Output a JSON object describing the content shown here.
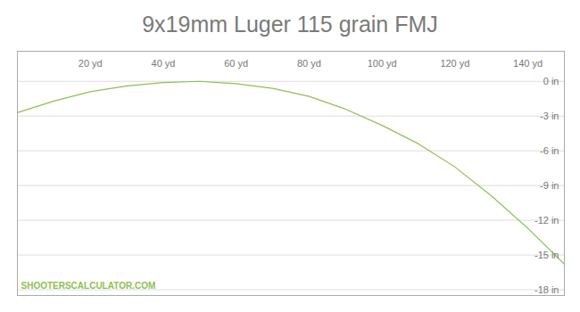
{
  "chart_data": {
    "type": "line",
    "title": "9x19mm Luger 115 grain FMJ",
    "annotation": "SHOOTERSCALCULATOR.COM",
    "x": [
      0,
      10,
      20,
      30,
      40,
      50,
      60,
      70,
      80,
      90,
      100,
      110,
      120,
      130,
      140,
      150
    ],
    "values": [
      -2.7,
      -1.7,
      -0.9,
      -0.4,
      -0.1,
      0.0,
      -0.2,
      -0.6,
      -1.3,
      -2.4,
      -3.8,
      -5.4,
      -7.4,
      -9.9,
      -12.7,
      -15.8
    ],
    "color": "#8cc152",
    "xlim": [
      0,
      150
    ],
    "xticks": [
      {
        "value": 20,
        "label": "20 yd"
      },
      {
        "value": 40,
        "label": "40 yd"
      },
      {
        "value": 60,
        "label": "60 yd"
      },
      {
        "value": 80,
        "label": "80 yd"
      },
      {
        "value": 100,
        "label": "100 yd"
      },
      {
        "value": 120,
        "label": "120 yd"
      },
      {
        "value": 140,
        "label": "140 yd"
      }
    ],
    "ylim": [
      -18.5,
      2.6
    ],
    "yticks": [
      {
        "value": 0,
        "label": "0 in"
      },
      {
        "value": -3,
        "label": "-3 in"
      },
      {
        "value": -6,
        "label": "-6 in"
      },
      {
        "value": -9,
        "label": "-9 in"
      },
      {
        "value": -12,
        "label": "-12 in"
      },
      {
        "value": -15,
        "label": "-15 in"
      },
      {
        "value": -18,
        "label": "-18 in"
      }
    ],
    "grid": true
  }
}
